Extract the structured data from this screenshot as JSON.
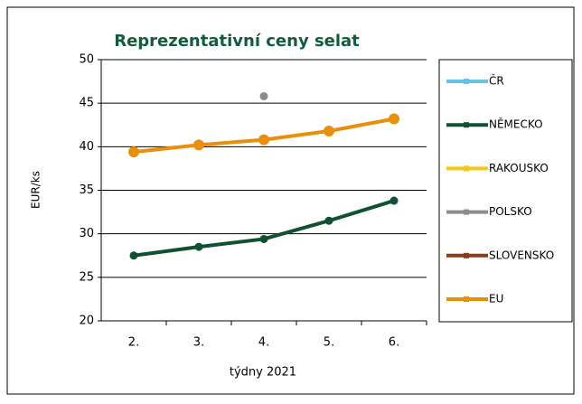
{
  "chart_data": {
    "type": "line",
    "title": "Reprezentativní ceny selat",
    "x_label": "týdny 2021",
    "y_label": "EUR/ks",
    "categories": [
      "2.",
      "3.",
      "4.",
      "5.",
      "6."
    ],
    "ylim": [
      20,
      50
    ],
    "yticks": [
      20,
      25,
      30,
      35,
      40,
      45,
      50
    ],
    "grid": true,
    "legend": "right",
    "series": [
      {
        "name": "ČR",
        "color": "#66c2e6",
        "values": [
          null,
          null,
          null,
          null,
          null
        ]
      },
      {
        "name": "NĚMECKO",
        "color": "#0f5132",
        "values": [
          27.5,
          28.5,
          29.4,
          31.5,
          33.8
        ]
      },
      {
        "name": "RAKOUSKO",
        "color": "#f5c518",
        "values": [
          null,
          null,
          null,
          null,
          null
        ]
      },
      {
        "name": "POLSKO",
        "color": "#8c8c8c",
        "values": [
          null,
          null,
          45.8,
          null,
          null
        ]
      },
      {
        "name": "SLOVENSKO",
        "color": "#8b3a1a",
        "values": [
          null,
          null,
          null,
          null,
          null
        ]
      },
      {
        "name": "EU",
        "color": "#e8900c",
        "values": [
          39.4,
          40.2,
          40.8,
          41.8,
          43.2
        ]
      }
    ]
  }
}
